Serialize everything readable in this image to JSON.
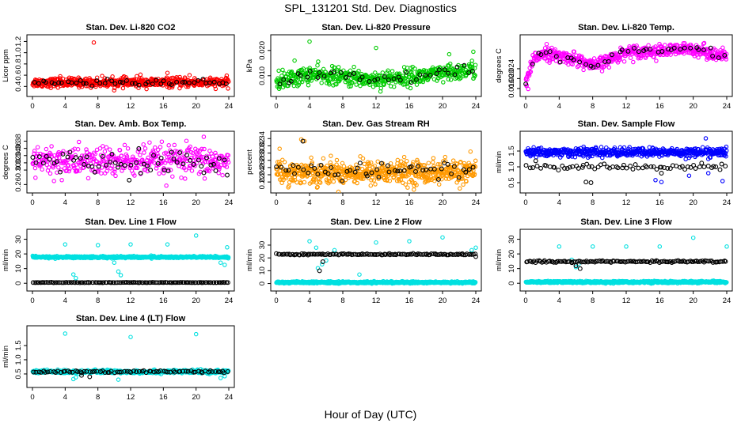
{
  "figure": {
    "title": "SPL_131201  Std. Dev. Diagnostics",
    "xlabel": "Hour of Day (UTC)"
  },
  "chart_data": [
    {
      "type": "scatter",
      "title": "Stan. Dev. Li-820 CO2",
      "ylabel": "Licor ppm",
      "xlim": [
        0,
        24
      ],
      "ylim": [
        0.32,
        1.22
      ],
      "xticks": [
        "0",
        "4",
        "8",
        "12",
        "16",
        "20",
        "24"
      ],
      "yticks": [
        {
          "v": 0.4,
          "label": "0.4"
        },
        {
          "v": 0.6,
          "label": "0.6"
        },
        {
          "v": 0.8,
          "label": "0.8"
        },
        {
          "v": 1.0,
          "label": "1.0"
        },
        {
          "v": 1.2,
          "label": "1.2"
        }
      ],
      "series": [
        {
          "name": "primary",
          "color": "#ff0000",
          "n": 560,
          "mean": 0.47,
          "sd": 0.04,
          "outliers": [
            [
              7.5,
              1.18
            ],
            [
              16.5,
              0.64
            ],
            [
              13.2,
              0.61
            ],
            [
              19.2,
              0.6
            ],
            [
              3.4,
              0.58
            ]
          ]
        },
        {
          "name": "secondary",
          "color": "#000000",
          "n": 48,
          "mean": 0.47,
          "sd": 0.025,
          "outliers": []
        }
      ]
    },
    {
      "type": "scatter",
      "title": "Stan. Dev. Li-820 Pressure",
      "ylabel": "kPa",
      "xlim": [
        0,
        24
      ],
      "ylim": [
        0.004,
        0.024
      ],
      "xticks": [
        "0",
        "4",
        "8",
        "12",
        "16",
        "20",
        "24"
      ],
      "yticks": [
        {
          "v": 0.01,
          "label": "0.010"
        },
        {
          "v": 0.02,
          "label": "0.020"
        }
      ],
      "series": [
        {
          "name": "primary",
          "color": "#00cc00",
          "n": 520,
          "trend": [
            [
              0,
              0.0075
            ],
            [
              4,
              0.0105
            ],
            [
              8,
              0.0095
            ],
            [
              12,
              0.0085
            ],
            [
              16,
              0.0095
            ],
            [
              20,
              0.0105
            ],
            [
              24,
              0.0125
            ]
          ],
          "sd": 0.0017,
          "outliers": [
            [
              4,
              0.0235
            ],
            [
              12,
              0.021
            ],
            [
              2.2,
              0.016
            ],
            [
              16.4,
              0.0135
            ],
            [
              20.8,
              0.0185
            ],
            [
              23.7,
              0.0195
            ],
            [
              0.3,
              0.012
            ]
          ]
        },
        {
          "name": "secondary",
          "color": "#000000",
          "n": 42,
          "trend": [
            [
              0,
              0.0075
            ],
            [
              4,
              0.0105
            ],
            [
              8,
              0.0095
            ],
            [
              12,
              0.0085
            ],
            [
              16,
              0.0095
            ],
            [
              20,
              0.0105
            ],
            [
              24,
              0.0125
            ]
          ],
          "sd": 0.0012,
          "outliers": []
        }
      ]
    },
    {
      "type": "scatter",
      "title": "Stan. Dev. Li-820 Temp.",
      "ylabel": "degrees C",
      "xlim": [
        0,
        24
      ],
      "ylim": [
        0.015,
        0.0355
      ],
      "xticks": [
        "0",
        "4",
        "8",
        "12",
        "16",
        "20",
        "24"
      ],
      "yticks": [
        {
          "v": 0.016,
          "label": "0.016"
        },
        {
          "v": 0.02,
          "label": "0.020"
        },
        {
          "v": 0.024,
          "label": "0.024"
        }
      ],
      "series": [
        {
          "name": "primary",
          "color": "#ff00ff",
          "n": 520,
          "trend": [
            [
              0,
              0.018
            ],
            [
              1,
              0.028
            ],
            [
              2,
              0.0305
            ],
            [
              4,
              0.029
            ],
            [
              6,
              0.028
            ],
            [
              8,
              0.025
            ],
            [
              10,
              0.0275
            ],
            [
              12,
              0.031
            ],
            [
              16,
              0.031
            ],
            [
              20,
              0.032
            ],
            [
              22,
              0.0305
            ],
            [
              24,
              0.0285
            ]
          ],
          "sd": 0.0013,
          "outliers": [
            [
              0.3,
              0.0158
            ],
            [
              0.1,
              0.017
            ],
            [
              2.5,
              0.034
            ]
          ]
        },
        {
          "name": "secondary",
          "color": "#000000",
          "n": 42,
          "trend": [
            [
              0,
              0.018
            ],
            [
              1,
              0.028
            ],
            [
              2,
              0.0305
            ],
            [
              4,
              0.029
            ],
            [
              6,
              0.028
            ],
            [
              8,
              0.025
            ],
            [
              10,
              0.0275
            ],
            [
              12,
              0.031
            ],
            [
              16,
              0.031
            ],
            [
              20,
              0.032
            ],
            [
              22,
              0.0305
            ],
            [
              24,
              0.0285
            ]
          ],
          "sd": 0.0009,
          "outliers": []
        }
      ]
    },
    {
      "type": "scatter",
      "title": "Stan. Dev. Amb. Box Temp.",
      "ylabel": "degrees C",
      "xlim": [
        0,
        24
      ],
      "ylim": [
        0.252,
        0.392
      ],
      "xticks": [
        "0",
        "4",
        "8",
        "12",
        "16",
        "20",
        "24"
      ],
      "yticks": [
        {
          "v": 0.26,
          "label": "0.26"
        },
        {
          "v": 0.3,
          "label": "0.30"
        },
        {
          "v": 0.32,
          "label": "0.32"
        },
        {
          "v": 0.34,
          "label": "0.34"
        },
        {
          "v": 0.36,
          "label": "0.36"
        },
        {
          "v": 0.38,
          "label": "0.38"
        }
      ],
      "series": [
        {
          "name": "primary",
          "color": "#ff00ff",
          "n": 420,
          "mean": 0.323,
          "sd": 0.022,
          "outliers": []
        },
        {
          "name": "secondary",
          "color": "#000000",
          "n": 60,
          "mean": 0.322,
          "sd": 0.015,
          "outliers": []
        }
      ]
    },
    {
      "type": "scatter",
      "title": "Stan. Dev. Gas Stream RH",
      "ylabel": "percent",
      "xlim": [
        0,
        24
      ],
      "ylim": [
        0.205,
        0.345
      ],
      "xticks": [
        "0",
        "4",
        "8",
        "12",
        "16",
        "20",
        "24"
      ],
      "yticks": [
        {
          "v": 0.22,
          "label": "0.22"
        },
        {
          "v": 0.24,
          "label": "0.24"
        },
        {
          "v": 0.26,
          "label": "0.26"
        },
        {
          "v": 0.28,
          "label": "0.28"
        },
        {
          "v": 0.3,
          "label": "0.30"
        },
        {
          "v": 0.32,
          "label": "0.32"
        },
        {
          "v": 0.34,
          "label": "0.34"
        }
      ],
      "series": [
        {
          "name": "primary",
          "color": "#ff9900",
          "n": 620,
          "mean": 0.247,
          "sd": 0.016,
          "outliers": [
            [
              3,
              0.338
            ],
            [
              3.4,
              0.333
            ],
            [
              0.4,
              0.312
            ]
          ]
        },
        {
          "name": "secondary",
          "color": "#000000",
          "n": 55,
          "mean": 0.253,
          "sd": 0.012,
          "outliers": [
            [
              3.2,
              0.333
            ]
          ]
        }
      ]
    },
    {
      "type": "scatter",
      "title": "Stan. Dev. Sample Flow",
      "ylabel": "ml/min",
      "xlim": [
        0,
        24
      ],
      "ylim": [
        0.35,
        1.95
      ],
      "xticks": [
        "0",
        "4",
        "8",
        "12",
        "16",
        "20",
        "24"
      ],
      "yticks": [
        {
          "v": 0.5,
          "label": "0.5"
        },
        {
          "v": 1.0,
          "label": "1.0"
        },
        {
          "v": 1.5,
          "label": "1.5"
        }
      ],
      "series": [
        {
          "name": "primary",
          "color": "#0000ff",
          "n": 560,
          "mean": 1.46,
          "sd": 0.07,
          "outliers": [
            [
              21.5,
              1.9
            ],
            [
              15.5,
              0.58
            ],
            [
              16.2,
              0.52
            ],
            [
              23.5,
              0.55
            ],
            [
              19.5,
              0.72
            ],
            [
              21.8,
              0.8
            ]
          ]
        },
        {
          "name": "secondary",
          "color": "#000000",
          "n": 70,
          "mean": 1.0,
          "sd": 0.05,
          "outliers": [
            [
              7.2,
              0.52
            ],
            [
              7.8,
              0.5
            ],
            [
              16.2,
              0.8
            ]
          ]
        }
      ]
    },
    {
      "type": "scatter",
      "title": "Stan. Dev. Line 1 Flow",
      "ylabel": "ml/min",
      "xlim": [
        0,
        24
      ],
      "ylim": [
        -1.5,
        33
      ],
      "xticks": [
        "0",
        "4",
        "8",
        "12",
        "16",
        "20",
        "24"
      ],
      "yticks": [
        {
          "v": 0,
          "label": "0"
        },
        {
          "v": 10,
          "label": "10"
        },
        {
          "v": 20,
          "label": "20"
        },
        {
          "v": 30,
          "label": "30"
        }
      ],
      "series": [
        {
          "name": "primary",
          "color": "#00e0e0",
          "n": 500,
          "mean": 17.8,
          "sd": 0.35,
          "outliers": [
            [
              4,
              26.5
            ],
            [
              5,
              6
            ],
            [
              5.3,
              3.5
            ],
            [
              8,
              26
            ],
            [
              10.5,
              8
            ],
            [
              10.8,
              5.5
            ],
            [
              12,
              26.5
            ],
            [
              16.5,
              26.5
            ],
            [
              20,
              32.5
            ],
            [
              23.8,
              24.5
            ],
            [
              23,
              14
            ],
            [
              23.5,
              12.5
            ],
            [
              10,
              14
            ]
          ]
        },
        {
          "name": "secondary",
          "color": "#000000",
          "n": 130,
          "mean": 0.5,
          "sd": 0.05,
          "outliers": []
        }
      ]
    },
    {
      "type": "scatter",
      "title": "Stan. Dev. Line 2 Flow",
      "ylabel": "ml/min",
      "xlim": [
        0,
        24
      ],
      "ylim": [
        -1.5,
        38
      ],
      "xticks": [
        "0",
        "4",
        "8",
        "12",
        "16",
        "20",
        "24"
      ],
      "yticks": [
        {
          "v": 0,
          "label": "0"
        },
        {
          "v": 10,
          "label": "10"
        },
        {
          "v": 20,
          "label": "20"
        },
        {
          "v": 30,
          "label": "30"
        }
      ],
      "series": [
        {
          "name": "primary",
          "color": "#00e0e0",
          "n": 640,
          "mean": 0.9,
          "sd": 0.35,
          "outliers": [
            [
              4,
              33
            ],
            [
              4.8,
              28
            ],
            [
              5,
              12
            ],
            [
              5.5,
              15
            ],
            [
              6,
              18
            ],
            [
              10,
              7
            ],
            [
              7,
              26
            ],
            [
              12,
              32
            ],
            [
              16,
              33
            ],
            [
              20,
              36
            ],
            [
              23.5,
              26
            ],
            [
              24,
              28
            ]
          ]
        },
        {
          "name": "secondary",
          "color": "#000000",
          "n": 130,
          "mean": 22.8,
          "sd": 0.25,
          "outliers": [
            [
              5.2,
              10
            ],
            [
              5.6,
              17
            ],
            [
              24,
              21
            ]
          ]
        }
      ]
    },
    {
      "type": "scatter",
      "title": "Stan. Dev. Line 3 Flow",
      "ylabel": "ml/min",
      "xlim": [
        0,
        24
      ],
      "ylim": [
        -1.5,
        33
      ],
      "xticks": [
        "0",
        "4",
        "8",
        "12",
        "16",
        "20",
        "24"
      ],
      "yticks": [
        {
          "v": 0,
          "label": "0"
        },
        {
          "v": 10,
          "label": "10"
        },
        {
          "v": 20,
          "label": "20"
        },
        {
          "v": 30,
          "label": "30"
        }
      ],
      "series": [
        {
          "name": "primary",
          "color": "#00e0e0",
          "n": 640,
          "mean": 0.8,
          "sd": 0.35,
          "outliers": [
            [
              4,
              25
            ],
            [
              6,
              11
            ],
            [
              6.3,
              13
            ],
            [
              8,
              25
            ],
            [
              12,
              25
            ],
            [
              16,
              25
            ],
            [
              20,
              31
            ],
            [
              24,
              25
            ],
            [
              5.5,
              16
            ]
          ]
        },
        {
          "name": "secondary",
          "color": "#000000",
          "n": 130,
          "mean": 14.8,
          "sd": 0.3,
          "outliers": [
            [
              6,
              12
            ],
            [
              6.5,
              10
            ],
            [
              5.5,
              14
            ]
          ]
        }
      ]
    },
    {
      "type": "scatter",
      "title": "Stan. Dev. Line 4 (LT) Flow",
      "ylabel": "ml/min",
      "xlim": [
        0,
        24
      ],
      "ylim": [
        0.22,
        2.0
      ],
      "xticks": [
        "0",
        "4",
        "8",
        "12",
        "16",
        "20",
        "24"
      ],
      "yticks": [
        {
          "v": 0.5,
          "label": "0.5"
        },
        {
          "v": 1.0,
          "label": "1.0"
        },
        {
          "v": 1.5,
          "label": "1.5"
        }
      ],
      "series": [
        {
          "name": "primary",
          "color": "#00e0e0",
          "n": 480,
          "mean": 0.58,
          "sd": 0.03,
          "outliers": [
            [
              4,
              1.92
            ],
            [
              12,
              1.8
            ],
            [
              20,
              1.9
            ],
            [
              5,
              0.32
            ],
            [
              5.3,
              0.38
            ],
            [
              10.5,
              0.3
            ],
            [
              23,
              0.36
            ],
            [
              23.5,
              0.42
            ]
          ]
        },
        {
          "name": "secondary",
          "color": "#000000",
          "n": 80,
          "mean": 0.58,
          "sd": 0.02,
          "outliers": [
            [
              6,
              0.45
            ],
            [
              7,
              0.4
            ]
          ]
        }
      ]
    }
  ]
}
